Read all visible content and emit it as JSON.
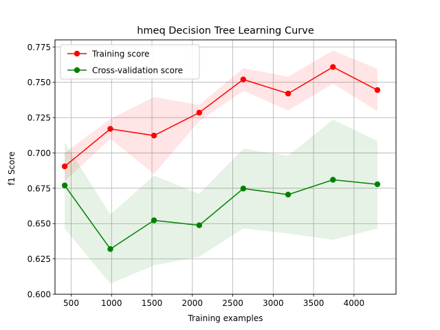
{
  "chart_data": {
    "type": "line",
    "title": "hmeq Decision Tree Learning Curve",
    "xlabel": "Training examples",
    "ylabel": "f1 Score",
    "xlim": [
      300,
      4520
    ],
    "ylim": [
      0.6,
      0.78
    ],
    "xticks": [
      500,
      1000,
      1500,
      2000,
      2500,
      3000,
      3500,
      4000
    ],
    "yticks": [
      0.6,
      0.625,
      0.65,
      0.675,
      0.7,
      0.725,
      0.75,
      0.775
    ],
    "grid": true,
    "legend_position": "upper-left",
    "x": [
      420,
      985,
      1525,
      2085,
      2630,
      3185,
      3740,
      4290
    ],
    "series": [
      {
        "name": "Training score",
        "color": "#ff0000",
        "band_color": "#ff0000",
        "values": [
          0.6905,
          0.717,
          0.7123,
          0.7285,
          0.752,
          0.742,
          0.7608,
          0.7445
        ],
        "upper": [
          0.7,
          0.724,
          0.7395,
          0.734,
          0.76,
          0.754,
          0.7725,
          0.7595
        ],
        "lower": [
          0.68,
          0.71,
          0.685,
          0.7225,
          0.744,
          0.73,
          0.749,
          0.7295
        ]
      },
      {
        "name": "Cross-validation score",
        "color": "#008000",
        "band_color": "#008000",
        "values": [
          0.677,
          0.632,
          0.6523,
          0.6488,
          0.6748,
          0.6705,
          0.681,
          0.6778
        ],
        "upper": [
          0.7075,
          0.6565,
          0.684,
          0.671,
          0.703,
          0.698,
          0.7235,
          0.7085
        ],
        "lower": [
          0.6465,
          0.6075,
          0.6205,
          0.6265,
          0.6465,
          0.643,
          0.6385,
          0.6465
        ]
      }
    ]
  }
}
